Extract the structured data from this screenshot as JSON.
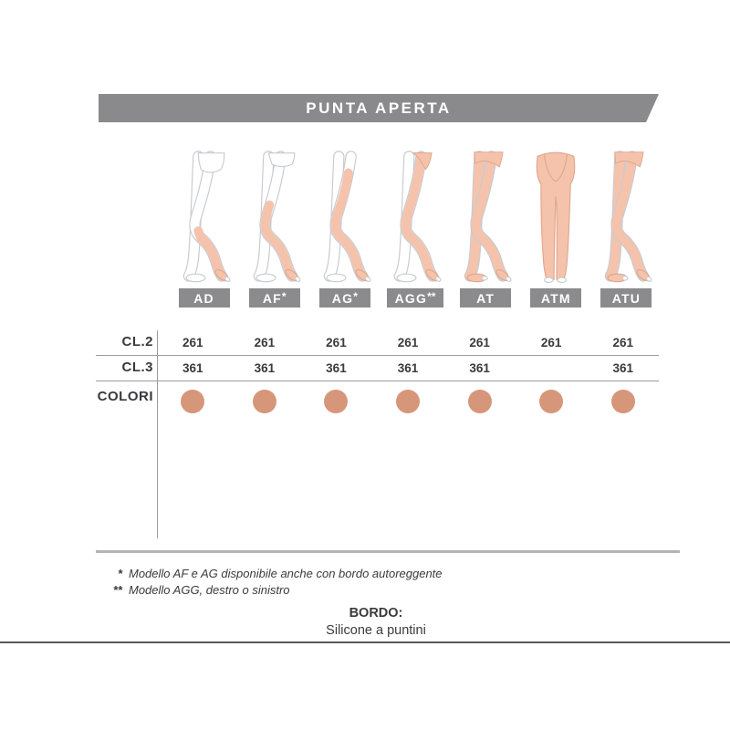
{
  "banner": {
    "title": "PUNTA APERTA"
  },
  "colors": {
    "banner_bg": "#8a8a8c",
    "label_box_bg": "#8b8b8d",
    "text_dark": "#3a3a3c",
    "line_gray": "#9b9b9b",
    "thick_line_gray": "#b4b4b4",
    "bottom_line": "#54575b",
    "leg_outline": "#c8cbd1",
    "leg_fill": "#f5c3ac",
    "leg_fill_stroke": "#e0a68c",
    "color_dot": "#d6967a"
  },
  "table": {
    "row_labels": [
      "CL.2",
      "CL.3",
      "COLORI"
    ]
  },
  "columns": [
    {
      "model": "AD",
      "label_base": "AD",
      "label_sup": "",
      "variant": "knee-high",
      "cl2": "261",
      "cl3": "361",
      "dot": true
    },
    {
      "model": "AF",
      "label_base": "AF",
      "label_sup": "*",
      "variant": "mid-thigh",
      "cl2": "261",
      "cl3": "361",
      "dot": true
    },
    {
      "model": "AG",
      "label_base": "AG",
      "label_sup": "*",
      "variant": "thigh-high",
      "cl2": "261",
      "cl3": "361",
      "dot": true
    },
    {
      "model": "AGG",
      "label_base": "AGG",
      "label_sup": "**",
      "variant": "thigh-with-hip",
      "cl2": "261",
      "cl3": "361",
      "dot": true
    },
    {
      "model": "AT",
      "label_base": "AT",
      "label_sup": "",
      "variant": "tights",
      "cl2": "261",
      "cl3": "361",
      "dot": true
    },
    {
      "model": "ATM",
      "label_base": "ATM",
      "label_sup": "",
      "variant": "maternity",
      "cl2": "261",
      "cl3": "",
      "dot": true
    },
    {
      "model": "ATU",
      "label_base": "ATU",
      "label_sup": "",
      "variant": "tights-side",
      "cl2": "261",
      "cl3": "361",
      "dot": true
    }
  ],
  "footnotes": [
    {
      "marker": "*",
      "text": "Modello AF e AG disponibile anche con bordo autoreggente"
    },
    {
      "marker": "**",
      "text": "Modello AGG, destro o sinistro"
    }
  ],
  "bordo": {
    "title": "BORDO:",
    "subtitle": "Silicone a puntini"
  }
}
